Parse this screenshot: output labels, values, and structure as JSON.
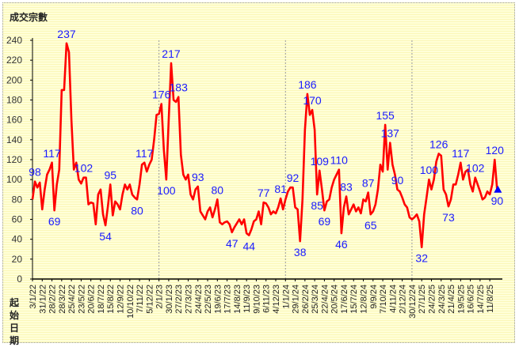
{
  "chart_data": {
    "type": "line",
    "title": "成交宗數",
    "xlabel_lines": [
      "起始",
      "日期"
    ],
    "ylabel": "",
    "ylim": [
      0,
      240
    ],
    "yticks": [
      0,
      20,
      40,
      60,
      80,
      100,
      120,
      140,
      160,
      180,
      200,
      220,
      240
    ],
    "xtick_labels": [
      "3/1/22",
      "31/1/22",
      "28/2/22",
      "28/3/22",
      "25/4/22",
      "23/5/22",
      "20/6/22",
      "18/7/22",
      "15/8/22",
      "12/9/22",
      "10/10/22",
      "7/11/22",
      "5/12/22",
      "2/1/23",
      "30/1/23",
      "27/2/23",
      "27/3/23",
      "24/4/23",
      "22/5/23",
      "19/6/23",
      "17/7/23",
      "14/8/23",
      "11/9/23",
      "9/10/23",
      "6/11/23",
      "4/12/23",
      "1/1/24",
      "29/1/24",
      "26/2/24",
      "25/3/24",
      "22/4/24",
      "20/5/24",
      "17/6/24",
      "15/7/24",
      "12/8/24",
      "9/9/24",
      "7/10/24",
      "4/11/24",
      "2/12/24",
      "30/12/24",
      "27/1/25",
      "24/2/25",
      "24/3/25",
      "21/4/25",
      "19/5/25",
      "16/6/25",
      "14/7/25",
      "11/8/25"
    ],
    "xtick_every_n_weeks": 4,
    "year_separators": [
      "2/1/23",
      "1/1/24",
      "30/12/24"
    ],
    "series": [
      {
        "name": "成交宗數",
        "color": "#ff0000",
        "values": [
          80,
          98,
          92,
          97,
          70,
          90,
          105,
          110,
          117,
          69,
          95,
          110,
          190,
          190,
          237,
          228,
          160,
          110,
          117,
          100,
          96,
          102,
          102,
          75,
          77,
          76,
          55,
          85,
          90,
          65,
          54,
          73,
          95,
          64,
          78,
          75,
          70,
          85,
          95,
          90,
          95,
          85,
          82,
          80,
          95,
          115,
          117,
          108,
          115,
          120,
          140,
          165,
          166,
          176,
          130,
          100,
          160,
          217,
          180,
          178,
          183,
          125,
          105,
          100,
          105,
          85,
          80,
          90,
          93,
          68,
          64,
          60,
          68,
          72,
          62,
          70,
          80,
          57,
          55,
          57,
          58,
          55,
          47,
          52,
          56,
          60,
          55,
          60,
          46,
          44,
          50,
          58,
          60,
          68,
          55,
          77,
          76,
          72,
          65,
          68,
          66,
          72,
          81,
          70,
          80,
          88,
          92,
          92,
          72,
          70,
          38,
          80,
          150,
          186,
          165,
          170,
          150,
          85,
          109,
          90,
          69,
          78,
          80,
          92,
          100,
          105,
          110,
          46,
          72,
          83,
          65,
          70,
          75,
          68,
          72,
          66,
          80,
          78,
          87,
          65,
          68,
          75,
          90,
          115,
          108,
          155,
          110,
          137,
          115,
          105,
          90,
          88,
          82,
          75,
          72,
          62,
          60,
          62,
          65,
          58,
          32,
          65,
          82,
          100,
          90,
          100,
          118,
          126,
          124,
          90,
          85,
          73,
          80,
          95,
          95,
          105,
          117,
          100,
          108,
          110,
          95,
          88,
          102,
          95,
          88,
          80,
          82,
          88,
          85,
          95,
          120,
          90
        ]
      }
    ],
    "annotations": [
      {
        "index": 1,
        "text": "98",
        "pos": "above"
      },
      {
        "index": 8,
        "text": "117",
        "pos": "above"
      },
      {
        "index": 9,
        "text": "69",
        "pos": "below"
      },
      {
        "index": 14,
        "text": "237",
        "pos": "above"
      },
      {
        "index": 21,
        "text": "102",
        "pos": "above"
      },
      {
        "index": 30,
        "text": "54",
        "pos": "below"
      },
      {
        "index": 32,
        "text": "95",
        "pos": "above"
      },
      {
        "index": 43,
        "text": "80",
        "pos": "below"
      },
      {
        "index": 46,
        "text": "117",
        "pos": "above"
      },
      {
        "index": 53,
        "text": "176",
        "pos": "above"
      },
      {
        "index": 55,
        "text": "100",
        "pos": "below"
      },
      {
        "index": 57,
        "text": "217",
        "pos": "above"
      },
      {
        "index": 60,
        "text": "183",
        "pos": "above"
      },
      {
        "index": 68,
        "text": "93",
        "pos": "above"
      },
      {
        "index": 76,
        "text": "80",
        "pos": "above"
      },
      {
        "index": 82,
        "text": "47",
        "pos": "below"
      },
      {
        "index": 89,
        "text": "44",
        "pos": "below"
      },
      {
        "index": 95,
        "text": "77",
        "pos": "above"
      },
      {
        "index": 102,
        "text": "81",
        "pos": "above"
      },
      {
        "index": 107,
        "text": "92",
        "pos": "above"
      },
      {
        "index": 110,
        "text": "38",
        "pos": "below"
      },
      {
        "index": 113,
        "text": "186",
        "pos": "above"
      },
      {
        "index": 115,
        "text": "170",
        "pos": "above"
      },
      {
        "index": 117,
        "text": "85",
        "pos": "below"
      },
      {
        "index": 118,
        "text": "109",
        "pos": "above"
      },
      {
        "index": 120,
        "text": "69",
        "pos": "below"
      },
      {
        "index": 126,
        "text": "110",
        "pos": "above"
      },
      {
        "index": 127,
        "text": "46",
        "pos": "below"
      },
      {
        "index": 129,
        "text": "83",
        "pos": "above"
      },
      {
        "index": 138,
        "text": "87",
        "pos": "above"
      },
      {
        "index": 139,
        "text": "65",
        "pos": "below"
      },
      {
        "index": 145,
        "text": "155",
        "pos": "above"
      },
      {
        "index": 147,
        "text": "137",
        "pos": "above"
      },
      {
        "index": 150,
        "text": "90",
        "pos": "above"
      },
      {
        "index": 160,
        "text": "32",
        "pos": "below"
      },
      {
        "index": 163,
        "text": "100",
        "pos": "above"
      },
      {
        "index": 167,
        "text": "126",
        "pos": "above"
      },
      {
        "index": 171,
        "text": "73",
        "pos": "below"
      },
      {
        "index": 176,
        "text": "117",
        "pos": "above"
      },
      {
        "index": 182,
        "text": "102",
        "pos": "above"
      },
      {
        "index": 190,
        "text": "120",
        "pos": "above"
      },
      {
        "index": 191,
        "text": "90",
        "pos": "below"
      }
    ],
    "last_point_marker": "triangle",
    "marker_color": "#0000ff",
    "annotation_color": "#1a1aff",
    "grid": false,
    "legend": "none"
  }
}
